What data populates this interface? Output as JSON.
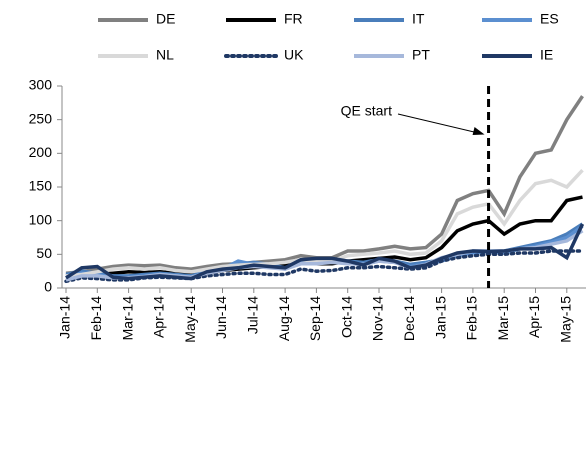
{
  "chart_data": {
    "type": "line",
    "categories": [
      "Jan-14",
      null,
      "Feb-14",
      null,
      "Mar-14",
      null,
      "Apr-14",
      null,
      "May-14",
      null,
      "Jun-14",
      null,
      "Jul-14",
      null,
      "Aug-14",
      null,
      "Sep-14",
      null,
      "Oct-14",
      null,
      "Nov-14",
      null,
      "Dec-14",
      null,
      "Jan-15",
      null,
      "Feb-15",
      null,
      "Mar-15",
      null,
      "Apr-15",
      null,
      "May-15",
      null
    ],
    "series": [
      {
        "name": "DE",
        "color": "#808080",
        "dash": "solid",
        "values": [
          22,
          24,
          28,
          32,
          34,
          33,
          34,
          30,
          28,
          32,
          35,
          36,
          38,
          40,
          42,
          48,
          45,
          45,
          55,
          55,
          58,
          62,
          58,
          60,
          80,
          130,
          140,
          145,
          110,
          165,
          200,
          205,
          250,
          285
        ]
      },
      {
        "name": "FR",
        "color": "#000000",
        "dash": "solid",
        "values": [
          15,
          18,
          20,
          22,
          24,
          23,
          24,
          22,
          20,
          22,
          26,
          28,
          30,
          32,
          34,
          38,
          36,
          36,
          40,
          42,
          44,
          46,
          42,
          45,
          60,
          85,
          95,
          100,
          80,
          95,
          100,
          100,
          130,
          135
        ]
      },
      {
        "name": "IT",
        "color": "#4a7ebb",
        "dash": "solid",
        "values": [
          20,
          25,
          22,
          18,
          18,
          20,
          22,
          20,
          18,
          25,
          30,
          35,
          38,
          35,
          30,
          40,
          40,
          42,
          40,
          38,
          42,
          40,
          35,
          38,
          42,
          50,
          55,
          55,
          55,
          60,
          65,
          70,
          80,
          95
        ]
      },
      {
        "name": "ES",
        "color": "#5b8fd0",
        "dash": "solid",
        "values": [
          18,
          22,
          20,
          16,
          16,
          18,
          20,
          18,
          16,
          24,
          28,
          40,
          35,
          32,
          28,
          38,
          38,
          40,
          38,
          35,
          40,
          38,
          32,
          36,
          40,
          48,
          52,
          54,
          52,
          58,
          62,
          68,
          75,
          92
        ]
      },
      {
        "name": "NL",
        "color": "#d9d9d9",
        "dash": "solid",
        "values": [
          18,
          20,
          24,
          28,
          30,
          28,
          30,
          26,
          24,
          28,
          32,
          34,
          35,
          36,
          38,
          42,
          40,
          40,
          48,
          50,
          52,
          55,
          50,
          52,
          70,
          110,
          120,
          125,
          95,
          130,
          155,
          160,
          150,
          175
        ]
      },
      {
        "name": "UK",
        "color": "#1f3864",
        "dash": "dotted",
        "values": [
          10,
          15,
          14,
          12,
          12,
          15,
          16,
          15,
          14,
          18,
          20,
          22,
          22,
          20,
          20,
          28,
          25,
          26,
          30,
          30,
          32,
          30,
          28,
          30,
          40,
          45,
          48,
          50,
          50,
          52,
          52,
          55,
          55,
          55
        ]
      },
      {
        "name": "PT",
        "color": "#a6b8db",
        "dash": "solid",
        "values": [
          12,
          18,
          18,
          15,
          15,
          17,
          20,
          18,
          16,
          22,
          26,
          30,
          32,
          30,
          28,
          36,
          36,
          38,
          36,
          35,
          40,
          38,
          30,
          35,
          45,
          50,
          55,
          55,
          55,
          58,
          60,
          65,
          70,
          85
        ]
      },
      {
        "name": "IE",
        "color": "#1f3864",
        "dash": "solid",
        "values": [
          15,
          30,
          32,
          16,
          14,
          16,
          18,
          16,
          14,
          24,
          28,
          30,
          34,
          32,
          30,
          42,
          44,
          44,
          40,
          34,
          44,
          40,
          30,
          34,
          44,
          52,
          55,
          54,
          55,
          58,
          58,
          60,
          45,
          95
        ]
      }
    ],
    "ylim": [
      0,
      300
    ],
    "yticks": [
      0,
      50,
      100,
      150,
      200,
      250,
      300
    ],
    "annotation": {
      "text": "QE start",
      "category_index": 27
    }
  }
}
